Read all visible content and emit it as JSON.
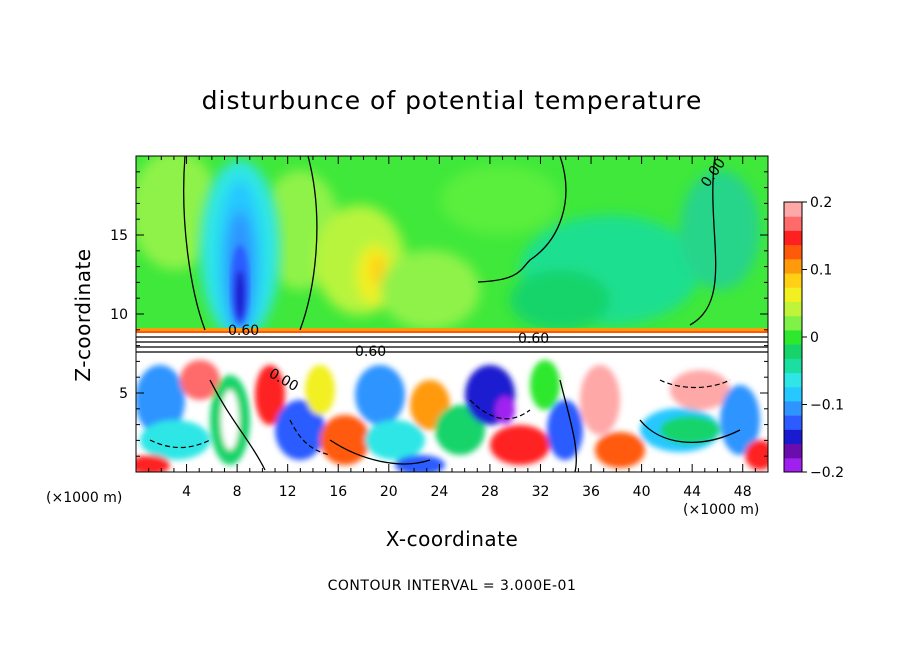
{
  "chart_data": {
    "type": "heatmap",
    "title": "disturbunce of potential temperature",
    "xlabel": "X-coordinate",
    "ylabel": "Z-coordinate",
    "x_unit": "(×1000 m)",
    "xlim": [
      0,
      50
    ],
    "ylim": [
      0,
      20
    ],
    "x_ticks": [
      4,
      8,
      12,
      16,
      20,
      24,
      28,
      32,
      36,
      40,
      44,
      48
    ],
    "y_ticks": [
      5,
      10,
      15
    ],
    "colorbar": {
      "range": [
        -0.2,
        0.2
      ],
      "tick_values": [
        0.2,
        0.1,
        0,
        -0.1,
        -0.2
      ],
      "tick_labels": [
        "0.2",
        "0.1",
        "0",
        "−0.1",
        "−0.2"
      ],
      "colors": [
        "#a020f0",
        "#6a0dad",
        "#1a1ad0",
        "#2c5cff",
        "#2f94ff",
        "#26c8ff",
        "#2ee6e6",
        "#1adfa0",
        "#16d46a",
        "#2ee82e",
        "#7ff24a",
        "#c0f43a",
        "#f2f020",
        "#ffd014",
        "#ff9a0a",
        "#ff5a0a",
        "#ff2020",
        "#ff6a6a",
        "#ffa8a8"
      ]
    },
    "contour_labels": [
      "0.60",
      "0.60",
      "0.60",
      "0.00",
      "0.00"
    ],
    "contour_interval": "CONTOUR INTERVAL = 3.000E-01",
    "grid": false
  }
}
